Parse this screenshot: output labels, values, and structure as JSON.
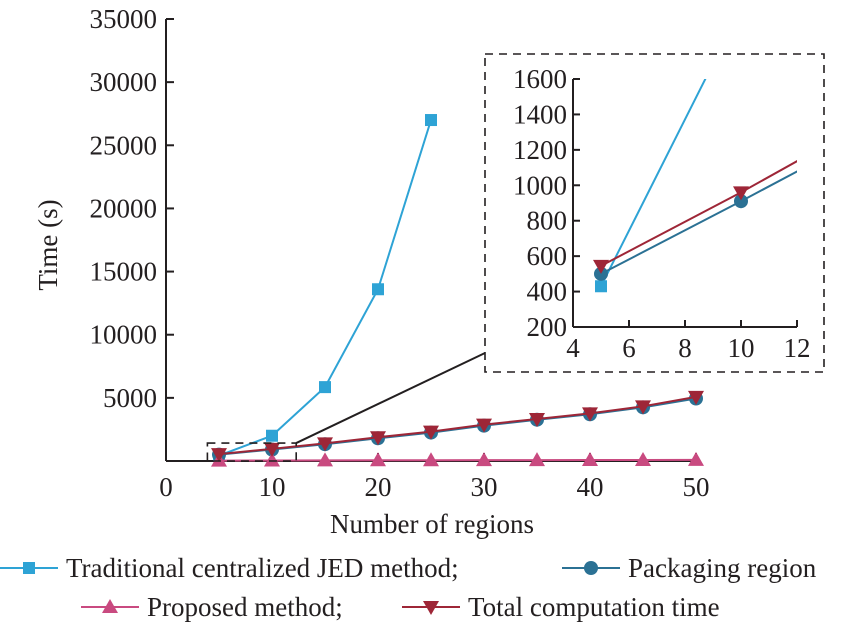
{
  "chart_data": {
    "type": "line",
    "title": "",
    "xlabel": "Number of regions",
    "ylabel": "Time (s)",
    "xlim": [
      0,
      50
    ],
    "ylim": [
      0,
      35000
    ],
    "x_ticks": [
      0,
      10,
      20,
      30,
      40,
      50
    ],
    "y_ticks": [
      5000,
      10000,
      15000,
      20000,
      25000,
      30000,
      35000
    ],
    "x_tick_labels": [
      "0",
      "10",
      "20",
      "30",
      "40",
      "50"
    ],
    "y_tick_labels": [
      "5000",
      "10000",
      "15000",
      "20000",
      "25000",
      "30000",
      "35000"
    ],
    "grid": false,
    "legend_position": "bottom",
    "series": [
      {
        "name": "Traditional centralized JED method",
        "legend_label": "Traditional centralized JED method;",
        "marker": "square",
        "color": "#2ea3d5",
        "x": [
          5,
          10,
          15,
          20,
          25
        ],
        "values": [
          430,
          2000,
          5850,
          13600,
          27000
        ]
      },
      {
        "name": "Packaging region",
        "legend_label": "Packaging region",
        "marker": "circle",
        "color": "#2b7194",
        "x": [
          5,
          10,
          15,
          20,
          25,
          30,
          35,
          40,
          45,
          50
        ],
        "values": [
          500,
          910,
          1330,
          1800,
          2250,
          2800,
          3270,
          3700,
          4250,
          4950
        ]
      },
      {
        "name": "Proposed method",
        "legend_label": "Proposed method;",
        "marker": "triangle-up",
        "color": "#c94a80",
        "x": [
          5,
          10,
          15,
          20,
          25,
          30,
          35,
          40,
          45,
          50
        ],
        "values": [
          30,
          40,
          50,
          55,
          60,
          65,
          70,
          75,
          80,
          90
        ]
      },
      {
        "name": "Total computation time",
        "legend_label": "Total computation time",
        "marker": "triangle-down",
        "color": "#9e2637",
        "x": [
          5,
          10,
          15,
          20,
          25,
          30,
          35,
          40,
          45,
          50
        ],
        "values": [
          545,
          960,
          1400,
          1880,
          2330,
          2880,
          3330,
          3770,
          4330,
          5080
        ]
      }
    ],
    "inset": {
      "xlim": [
        4,
        12
      ],
      "ylim": [
        200,
        1600
      ],
      "x_ticks": [
        4,
        6,
        8,
        10,
        12
      ],
      "y_ticks": [
        200,
        400,
        600,
        800,
        1000,
        1200,
        1400,
        1600
      ],
      "x_tick_labels": [
        "4",
        "6",
        "8",
        "10",
        "12"
      ],
      "y_tick_labels": [
        "200",
        "400",
        "600",
        "800",
        "1000",
        "1200",
        "1400",
        "1600"
      ],
      "zoom_region": {
        "x": [
          4,
          12
        ],
        "y": [
          0,
          1500
        ]
      }
    }
  }
}
